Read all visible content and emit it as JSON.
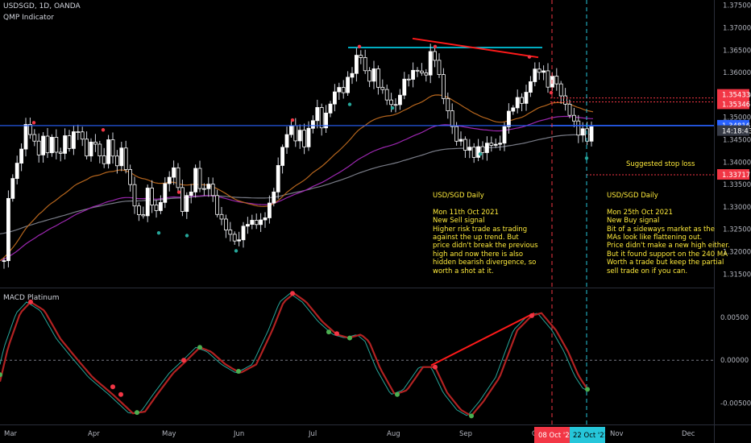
{
  "header": {
    "symbol": "USDSGD, 1D, OANDA",
    "indicator": "QMP Indicator"
  },
  "macd": {
    "title": "MACD Platinum",
    "ticks": [
      "0.00500",
      "0.00000",
      "-0.00500"
    ]
  },
  "price_axis": {
    "ticks": [
      "1.37500",
      "1.37000",
      "1.36500",
      "1.36000",
      "1.35500",
      "1.35000",
      "1.34500",
      "1.34000",
      "1.33500",
      "1.33000",
      "1.32500",
      "1.32000",
      "1.31500"
    ],
    "badges": [
      {
        "label": "1.35433",
        "color": "#f23645"
      },
      {
        "label": "1.35346",
        "color": "#f23645"
      },
      {
        "label": "1.34816",
        "color": "#2962ff"
      },
      {
        "label": "14:18:43",
        "color": "#363a45"
      },
      {
        "label": "1.33717",
        "color": "#f23645"
      }
    ]
  },
  "time_axis": {
    "labels": [
      "Mar",
      "Apr",
      "May",
      "Jun",
      "Jul",
      "Aug",
      "Sep",
      "O",
      "Nov",
      "Dec"
    ],
    "marker_sell": "08 Oct '21",
    "marker_buy": "22 Oct '21"
  },
  "annotations": {
    "stop_loss": "Suggested stop loss",
    "sell_note": "USD/SGD Daily\n\nMon 11th Oct 2021\nNew Sell signal\nHigher risk trade as trading\nagainst the up trend. But\nprice didn't break the previous\nhigh and now there is also\nhidden bearish divergence, so\nworth a shot at it.",
    "buy_note": "USD/SGD Daily\n\nMon 25th Oct 2021\nNew Buy signal\nBit of a sideways market as the\nMAs look like flattening out.\nPrice didn't make a new high either.\nBut it found support on the 240 MA\nWorth a trade but keep the partial\nsell trade on if you can."
  },
  "colors": {
    "up": "#ffffff",
    "down": "#ffffff",
    "ma_fast": "#b5651d",
    "ma_mid": "#9c27b0",
    "ma_slow": "#787b86",
    "signal_sell": "#f23645",
    "signal_buy": "#26a69a",
    "resistance": "#00e5ff",
    "trendline": "#ff1a1a",
    "macd_line": "#b22222",
    "macd_signal": "#26a69a"
  },
  "chart_data": {
    "type": "candlestick",
    "symbol": "USDSGD",
    "timeframe": "1D",
    "ylim": [
      1.312,
      1.3762
    ],
    "key_levels": {
      "resistance": 1.3656,
      "stop_loss": 1.33717,
      "current": 1.34816,
      "level_a": 1.35433,
      "level_b": 1.35346
    },
    "price_path": [
      [
        0,
        1.318
      ],
      [
        4,
        1.33
      ],
      [
        9,
        1.336
      ],
      [
        16,
        1.339
      ],
      [
        22,
        1.344
      ],
      [
        29,
        1.349
      ],
      [
        36,
        1.345
      ],
      [
        42,
        1.341
      ],
      [
        47,
        1.347
      ],
      [
        52,
        1.341
      ],
      [
        58,
        1.346
      ],
      [
        63,
        1.343
      ],
      [
        69,
        1.341
      ],
      [
        75,
        1.346
      ],
      [
        80,
        1.343
      ],
      [
        86,
        1.346
      ],
      [
        91,
        1.348
      ],
      [
        96,
        1.345
      ],
      [
        101,
        1.342
      ],
      [
        107,
        1.343
      ],
      [
        112,
        1.346
      ],
      [
        118,
        1.341
      ],
      [
        123,
        1.339
      ],
      [
        129,
        1.345
      ],
      [
        134,
        1.342
      ],
      [
        140,
        1.339
      ],
      [
        146,
        1.343
      ],
      [
        151,
        1.339
      ],
      [
        157,
        1.334
      ],
      [
        162,
        1.331
      ],
      [
        168,
        1.327
      ],
      [
        173,
        1.329
      ],
      [
        179,
        1.334
      ],
      [
        184,
        1.331
      ],
      [
        190,
        1.328
      ],
      [
        195,
        1.332
      ],
      [
        200,
        1.335
      ],
      [
        206,
        1.337
      ],
      [
        211,
        1.339
      ],
      [
        216,
        1.334
      ],
      [
        222,
        1.329
      ],
      [
        227,
        1.332
      ],
      [
        232,
        1.334
      ],
      [
        238,
        1.338
      ],
      [
        243,
        1.335
      ],
      [
        249,
        1.333
      ],
      [
        254,
        1.336
      ],
      [
        259,
        1.332
      ],
      [
        264,
        1.329
      ],
      [
        270,
        1.327
      ],
      [
        275,
        1.325
      ],
      [
        281,
        1.324
      ],
      [
        286,
        1.322
      ],
      [
        291,
        1.323
      ],
      [
        297,
        1.325
      ],
      [
        302,
        1.327
      ],
      [
        307,
        1.326
      ],
      [
        313,
        1.327
      ],
      [
        318,
        1.326
      ],
      [
        323,
        1.328
      ],
      [
        329,
        1.33
      ],
      [
        334,
        1.333
      ],
      [
        339,
        1.338
      ],
      [
        345,
        1.343
      ],
      [
        350,
        1.346
      ],
      [
        356,
        1.348
      ],
      [
        361,
        1.345
      ],
      [
        366,
        1.347
      ],
      [
        372,
        1.344
      ],
      [
        377,
        1.346
      ],
      [
        383,
        1.35
      ],
      [
        388,
        1.352
      ],
      [
        393,
        1.348
      ],
      [
        399,
        1.35
      ],
      [
        404,
        1.353
      ],
      [
        409,
        1.355
      ],
      [
        415,
        1.357
      ],
      [
        420,
        1.355
      ],
      [
        425,
        1.358
      ],
      [
        431,
        1.36
      ],
      [
        436,
        1.362
      ],
      [
        441,
        1.366
      ],
      [
        447,
        1.36
      ],
      [
        452,
        1.358
      ],
      [
        457,
        1.361
      ],
      [
        463,
        1.358
      ],
      [
        468,
        1.356
      ],
      [
        473,
        1.355
      ],
      [
        479,
        1.353
      ],
      [
        484,
        1.352
      ],
      [
        489,
        1.354
      ],
      [
        495,
        1.357
      ],
      [
        500,
        1.36
      ],
      [
        505,
        1.358
      ],
      [
        511,
        1.362
      ],
      [
        516,
        1.36
      ],
      [
        521,
        1.358
      ],
      [
        527,
        1.363
      ],
      [
        532,
        1.365
      ],
      [
        537,
        1.362
      ],
      [
        543,
        1.356
      ],
      [
        548,
        1.353
      ],
      [
        553,
        1.35
      ],
      [
        559,
        1.346
      ],
      [
        564,
        1.344
      ],
      [
        569,
        1.345
      ],
      [
        575,
        1.342
      ],
      [
        580,
        1.343
      ],
      [
        586,
        1.341
      ],
      [
        591,
        1.344
      ],
      [
        597,
        1.342
      ],
      [
        602,
        1.345
      ],
      [
        607,
        1.344
      ],
      [
        613,
        1.343
      ],
      [
        618,
        1.346
      ],
      [
        623,
        1.349
      ],
      [
        629,
        1.353
      ],
      [
        634,
        1.352
      ],
      [
        639,
        1.355
      ],
      [
        645,
        1.353
      ],
      [
        650,
        1.356
      ],
      [
        656,
        1.361
      ],
      [
        661,
        1.359
      ],
      [
        666,
        1.362
      ],
      [
        672,
        1.358
      ],
      [
        677,
        1.357
      ],
      [
        683,
        1.36
      ],
      [
        688,
        1.356
      ],
      [
        693,
        1.354
      ],
      [
        699,
        1.352
      ],
      [
        704,
        1.35
      ],
      [
        709,
        1.348
      ],
      [
        715,
        1.346
      ],
      [
        720,
        1.347
      ],
      [
        725,
        1.345
      ],
      [
        731,
        1.348
      ],
      [
        736,
        1.3482
      ]
    ],
    "signals": [
      {
        "type": "sell",
        "x": 446,
        "price": 1.3658
      },
      {
        "type": "sell",
        "x": 540,
        "price": 1.3658
      },
      {
        "type": "sell",
        "x": 657,
        "price": 1.3635
      },
      {
        "type": "sell",
        "x": 42,
        "price": 1.3488
      },
      {
        "type": "sell",
        "x": 128,
        "price": 1.3472
      },
      {
        "type": "sell",
        "x": 222,
        "price": 1.3333
      },
      {
        "type": "sell",
        "x": 363,
        "price": 1.3494
      },
      {
        "type": "sell",
        "x": 684,
        "price": 1.3555
      },
      {
        "type": "buy",
        "x": 434,
        "price": 1.3529
      },
      {
        "type": "buy",
        "x": 487,
        "price": 1.3521
      },
      {
        "type": "buy",
        "x": 596,
        "price": 1.3418
      },
      {
        "type": "buy",
        "x": 728,
        "price": 1.3409
      },
      {
        "type": "buy",
        "x": 197,
        "price": 1.3242
      },
      {
        "type": "buy",
        "x": 232,
        "price": 1.3236
      },
      {
        "type": "buy",
        "x": 293,
        "price": 1.3202
      }
    ],
    "macd": {
      "ylim": [
        -0.0075,
        0.0082
      ],
      "line": [
        [
          0,
          -0.0025
        ],
        [
          10,
          0.0015
        ],
        [
          25,
          0.0055
        ],
        [
          38,
          0.0068
        ],
        [
          55,
          0.0058
        ],
        [
          75,
          0.0025
        ],
        [
          95,
          0.0002
        ],
        [
          115,
          -0.002
        ],
        [
          140,
          -0.004
        ],
        [
          165,
          -0.0062
        ],
        [
          180,
          -0.006
        ],
        [
          195,
          -0.004
        ],
        [
          215,
          -0.0015
        ],
        [
          232,
          0.0
        ],
        [
          248,
          0.0015
        ],
        [
          262,
          0.001
        ],
        [
          280,
          -0.0005
        ],
        [
          298,
          -0.0015
        ],
        [
          318,
          -0.0005
        ],
        [
          338,
          0.0035
        ],
        [
          352,
          0.0068
        ],
        [
          365,
          0.0078
        ],
        [
          380,
          0.0068
        ],
        [
          400,
          0.0045
        ],
        [
          418,
          0.003
        ],
        [
          433,
          0.0026
        ],
        [
          448,
          0.003
        ],
        [
          458,
          0.0022
        ],
        [
          472,
          -0.001
        ],
        [
          490,
          -0.004
        ],
        [
          505,
          -0.0035
        ],
        [
          525,
          -0.0008
        ],
        [
          540,
          -0.0008
        ],
        [
          555,
          -0.0038
        ],
        [
          572,
          -0.0058
        ],
        [
          585,
          -0.0065
        ],
        [
          600,
          -0.0048
        ],
        [
          620,
          -0.002
        ],
        [
          642,
          0.0035
        ],
        [
          660,
          0.0052
        ],
        [
          672,
          0.0055
        ],
        [
          690,
          0.0035
        ],
        [
          705,
          0.001
        ],
        [
          718,
          -0.0018
        ],
        [
          729,
          -0.0034
        ]
      ],
      "dots": [
        {
          "type": "sell",
          "x": 38,
          "v": 0.0068
        },
        {
          "type": "sell",
          "x": 140,
          "v": -0.0031
        },
        {
          "type": "sell",
          "x": 150,
          "v": -0.004
        },
        {
          "type": "sell",
          "x": 228,
          "v": 0.0
        },
        {
          "type": "sell",
          "x": 363,
          "v": 0.0078
        },
        {
          "type": "sell",
          "x": 418,
          "v": 0.0031
        },
        {
          "type": "sell",
          "x": 540,
          "v": -0.0008
        },
        {
          "type": "sell",
          "x": 660,
          "v": 0.0052
        },
        {
          "type": "buy",
          "x": 0,
          "v": -0.0017
        },
        {
          "type": "buy",
          "x": 170,
          "v": -0.0061
        },
        {
          "type": "buy",
          "x": 248,
          "v": 0.0015
        },
        {
          "type": "buy",
          "x": 296,
          "v": -0.0013
        },
        {
          "type": "buy",
          "x": 408,
          "v": 0.0033
        },
        {
          "type": "buy",
          "x": 434,
          "v": 0.0026
        },
        {
          "type": "buy",
          "x": 493,
          "v": -0.004
        },
        {
          "type": "buy",
          "x": 585,
          "v": -0.0065
        },
        {
          "type": "buy",
          "x": 729,
          "v": -0.0034
        }
      ]
    }
  }
}
